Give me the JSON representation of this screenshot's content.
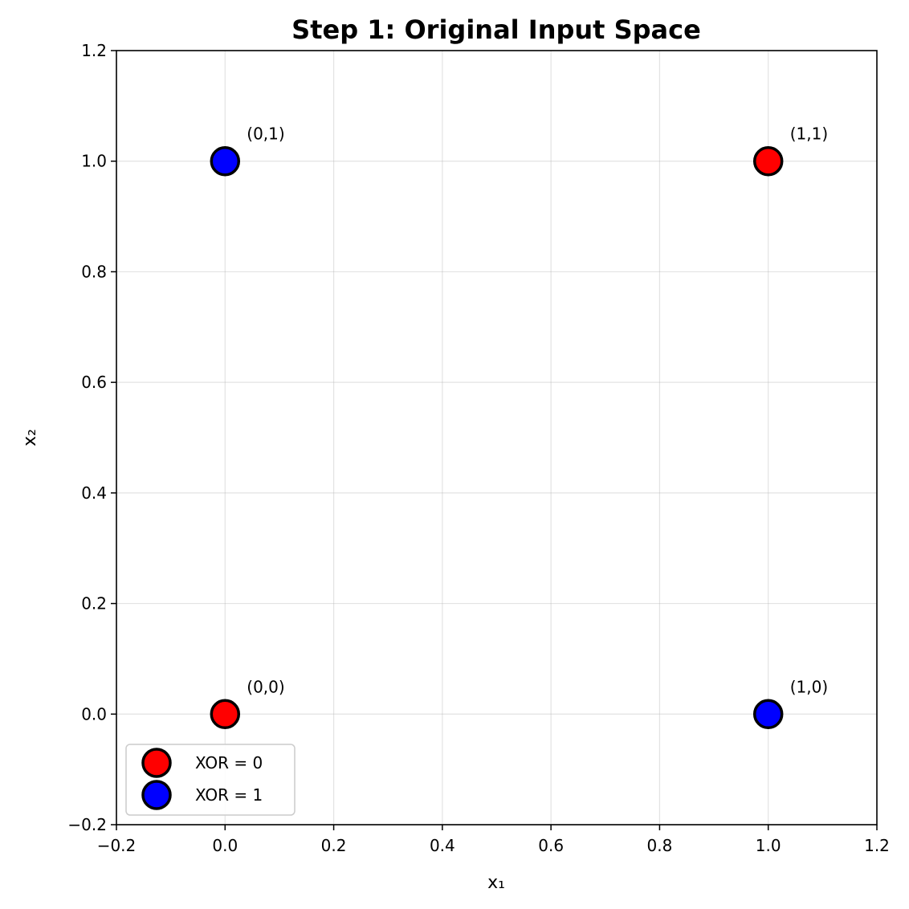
{
  "chart_data": {
    "type": "scatter",
    "title": "Step 1: Original Input Space",
    "xlabel": "x₁",
    "ylabel": "x₂",
    "xlim": [
      -0.2,
      1.2
    ],
    "ylim": [
      -0.2,
      1.2
    ],
    "xticks": [
      -0.2,
      0.0,
      0.2,
      0.4,
      0.6,
      0.8,
      1.0,
      1.2
    ],
    "yticks": [
      -0.2,
      0.0,
      0.2,
      0.4,
      0.6,
      0.8,
      1.0,
      1.2
    ],
    "xtick_labels": [
      "−0.2",
      "0.0",
      "0.2",
      "0.4",
      "0.6",
      "0.8",
      "1.0",
      "1.2"
    ],
    "ytick_labels": [
      "−0.2",
      "0.0",
      "0.2",
      "0.4",
      "0.6",
      "0.8",
      "1.0",
      "1.2"
    ],
    "grid": true,
    "legend_position": "lower-left",
    "series": [
      {
        "name": "XOR = 0",
        "color": "#ff0000",
        "points": [
          {
            "x": 0,
            "y": 0
          },
          {
            "x": 1,
            "y": 1
          }
        ]
      },
      {
        "name": "XOR = 1",
        "color": "#0000ff",
        "points": [
          {
            "x": 0,
            "y": 1
          },
          {
            "x": 1,
            "y": 0
          }
        ]
      }
    ],
    "annotations": [
      {
        "text": "(0,0)",
        "x": 0,
        "y": 0
      },
      {
        "text": "(0,1)",
        "x": 0,
        "y": 1
      },
      {
        "text": "(1,0)",
        "x": 1,
        "y": 0
      },
      {
        "text": "(1,1)",
        "x": 1,
        "y": 1
      }
    ]
  }
}
